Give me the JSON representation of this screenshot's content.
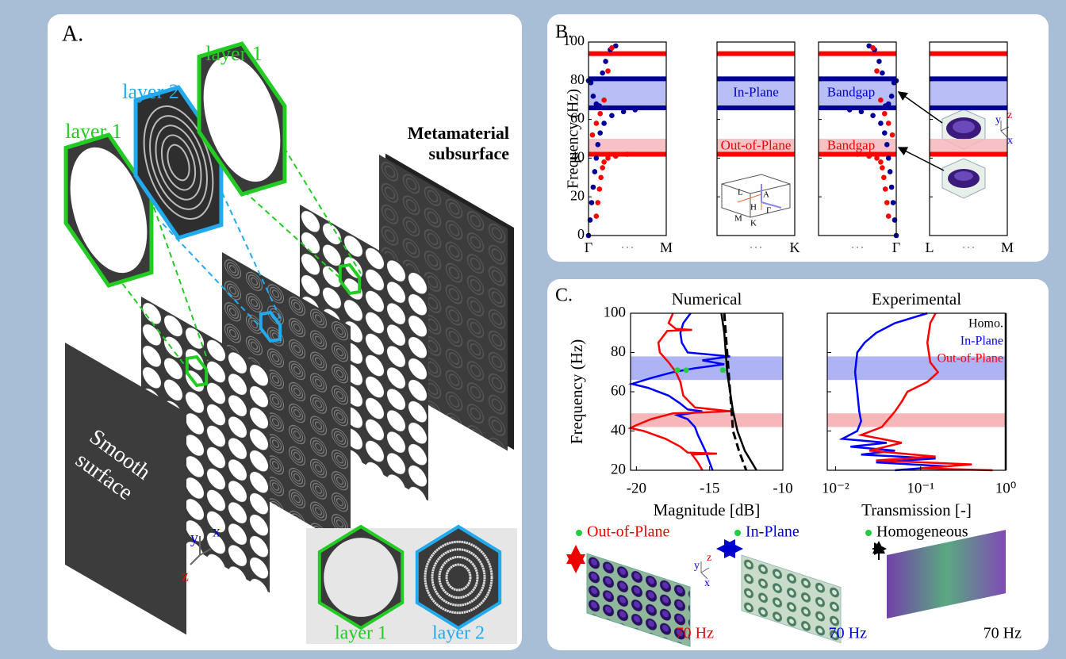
{
  "panel_a": {
    "label": "A.",
    "layer_labels": [
      "layer 1",
      "layer 2",
      "layer 1"
    ],
    "metamaterial_label": [
      "Metamaterial",
      "subsurface"
    ],
    "smooth_label": [
      "Smooth",
      "surface"
    ],
    "axes": [
      "y",
      "x",
      "z"
    ],
    "inset_labels": [
      "layer 1",
      "layer 2"
    ]
  },
  "panel_b": {
    "label": "B.",
    "brillouin_labels": [
      "L",
      "A",
      "H",
      "Γ",
      "M",
      "K"
    ],
    "cell_axes": [
      "y",
      "z",
      "x"
    ]
  },
  "panel_c": {
    "label": "C.",
    "modes": [
      {
        "label": "Out-of-Plane",
        "frequency": "70 Hz"
      },
      {
        "label": "In-Plane",
        "frequency": "70 Hz"
      },
      {
        "label": "Homogeneous",
        "frequency": "70 Hz"
      }
    ],
    "axes": [
      "y",
      "z",
      "x"
    ]
  },
  "chart_data": [
    {
      "type": "band-structure",
      "ylabel": "Frequency (Hz)",
      "ylim": [
        0,
        100
      ],
      "yticks": [
        0,
        20,
        40,
        60,
        80,
        100
      ],
      "panels": [
        [
          "Γ",
          "···",
          "M"
        ],
        [
          "···",
          "K"
        ],
        [
          "···",
          "Γ"
        ],
        [
          "L",
          "···",
          "M"
        ]
      ],
      "bandgaps": [
        {
          "name": "In-Plane",
          "label": "Bandgap",
          "range": [
            66,
            81
          ],
          "color": "#aeb3f5",
          "text_color": "#0000cc"
        },
        {
          "name": "Out-of-Plane",
          "label": "Bandgap",
          "range": [
            42,
            50
          ],
          "color": "#f6b7bb",
          "text_color": "#ee0000"
        }
      ],
      "flat_bands": [
        {
          "value": 94,
          "color": "#ff0000"
        },
        {
          "value": 81,
          "color": "#000099"
        },
        {
          "value": 66,
          "color": "#000099"
        },
        {
          "value": 42,
          "color": "#ff0000"
        }
      ],
      "point_sets": [
        {
          "panel": 0,
          "color": "#000099",
          "x": [
            0,
            0.02,
            0.04,
            0.06,
            0.08,
            0.1,
            0.12,
            0.15,
            0.2,
            0.3,
            0.45,
            0.6
          ],
          "y": [
            0,
            8,
            17,
            25,
            33,
            40,
            47,
            53,
            58,
            62,
            64,
            65
          ]
        },
        {
          "panel": 0,
          "color": "#ff0000",
          "x": [
            0.1,
            0.12,
            0.14,
            0.16,
            0.18,
            0.2,
            0.25,
            0.35,
            0.5
          ],
          "y": [
            10,
            17,
            24,
            30,
            35,
            38,
            40,
            41,
            42
          ]
        },
        {
          "panel": 0,
          "color": "#000099",
          "x": [
            0,
            0.03,
            0.06,
            0.1,
            0.14,
            0.18,
            0.22,
            0.28,
            0.35
          ],
          "y": [
            80,
            79,
            72,
            68,
            67,
            84,
            90,
            96,
            98
          ]
        },
        {
          "panel": 0,
          "color": "#ff0000",
          "x": [
            0.05,
            0.1,
            0.15,
            0.2,
            0.25,
            0.3
          ],
          "y": [
            52,
            58,
            63,
            70,
            85,
            97
          ]
        },
        {
          "panel": 2,
          "color": "#000099",
          "x": [
            1,
            0.98,
            0.96,
            0.94,
            0.92,
            0.9,
            0.88,
            0.85,
            0.8,
            0.7,
            0.55,
            0.4
          ],
          "y": [
            0,
            8,
            17,
            25,
            33,
            40,
            47,
            53,
            58,
            62,
            64,
            65
          ]
        },
        {
          "panel": 2,
          "color": "#ff0000",
          "x": [
            0.9,
            0.88,
            0.86,
            0.84,
            0.82,
            0.8,
            0.75,
            0.65,
            0.5
          ],
          "y": [
            10,
            17,
            24,
            30,
            35,
            38,
            40,
            41,
            42
          ]
        },
        {
          "panel": 2,
          "color": "#000099",
          "x": [
            1,
            0.97,
            0.94,
            0.9,
            0.86,
            0.82,
            0.78,
            0.72,
            0.65
          ],
          "y": [
            80,
            79,
            72,
            68,
            67,
            84,
            90,
            96,
            98
          ]
        },
        {
          "panel": 2,
          "color": "#ff0000",
          "x": [
            0.95,
            0.9,
            0.85,
            0.8,
            0.75,
            0.7
          ],
          "y": [
            52,
            58,
            63,
            70,
            85,
            97
          ]
        }
      ]
    },
    {
      "type": "line",
      "title": "Numerical",
      "xlabel": "Magnitude [dB]",
      "ylabel": "Frequency (Hz)",
      "xlim": [
        -20.4,
        -10
      ],
      "xticks": [
        -20,
        -15,
        -10
      ],
      "ylim": [
        20,
        100
      ],
      "yticks": [
        20,
        40,
        60,
        80,
        100
      ],
      "bands": [
        {
          "range": [
            66,
            78
          ],
          "color": "#aeb3f5"
        },
        {
          "range": [
            42,
            49
          ],
          "color": "#f6b7bb"
        }
      ],
      "series": [
        {
          "color": "#0000ff",
          "y": [
            100,
            95,
            90,
            85,
            80,
            78,
            76,
            74,
            72,
            70,
            67,
            64,
            62,
            58,
            54,
            51,
            50,
            48,
            46,
            42,
            38,
            30,
            20
          ],
          "x": [
            -16.3,
            -16.8,
            -17.0,
            -16.9,
            -16.5,
            -13.6,
            -15.5,
            -14.0,
            -16.0,
            -17.5,
            -19.0,
            -20.3,
            -19.2,
            -17.8,
            -17.0,
            -16.5,
            -15.5,
            -17.2,
            -16.5,
            -16.0,
            -15.8,
            -15.3,
            -14.8
          ]
        },
        {
          "color": "#ff0000",
          "y": [
            100,
            95,
            92,
            91.5,
            91,
            85,
            80,
            75,
            70,
            65,
            58,
            52,
            50,
            49,
            46,
            43,
            41.5,
            40,
            36,
            32,
            29,
            28.5,
            28,
            24,
            20
          ],
          "x": [
            -17.5,
            -17.8,
            -17.3,
            -16.2,
            -17.9,
            -18.5,
            -18.4,
            -17.8,
            -17.3,
            -17.0,
            -16.8,
            -16.0,
            -13.5,
            -17.5,
            -19.0,
            -20.0,
            -20.4,
            -19.5,
            -18.0,
            -17.0,
            -16.5,
            -14.5,
            -16.2,
            -15.8,
            -15.5
          ]
        },
        {
          "color": "#000000",
          "y": [
            100,
            90,
            80,
            70,
            60,
            50,
            40,
            30,
            20
          ],
          "x": [
            -14.2,
            -14.0,
            -13.9,
            -13.8,
            -13.6,
            -13.4,
            -13.1,
            -12.6,
            -11.8
          ]
        },
        {
          "color": "#000000",
          "dash": true,
          "y": [
            100,
            80,
            60,
            40,
            30,
            20
          ],
          "x": [
            -14.0,
            -13.8,
            -13.6,
            -13.4,
            -13.0,
            -12.5
          ]
        }
      ],
      "markers": {
        "color": "#22cc44",
        "x": [
          -17.2,
          -16.6,
          -14.1
        ],
        "y": [
          71,
          71,
          71
        ]
      }
    },
    {
      "type": "line",
      "title": "Experimental",
      "xlabel": "Transmission [-]",
      "log_x": true,
      "xlim": [
        0.008,
        1
      ],
      "xticks": [
        {
          "value": 0.01,
          "label": "10⁻²"
        },
        {
          "value": 0.1,
          "label": "10⁻¹"
        },
        {
          "value": 1,
          "label": "10⁰"
        }
      ],
      "ylim": [
        20,
        100
      ],
      "yticks": [
        20,
        40,
        60,
        80,
        100
      ],
      "ytick_labels": false,
      "legend": "upper right",
      "bands": [
        {
          "range": [
            66,
            78
          ],
          "color": "#aeb3f5"
        },
        {
          "range": [
            42,
            49
          ],
          "color": "#f6b7bb"
        }
      ],
      "series": [
        {
          "name": "Homo.",
          "color": "#000000",
          "y": [
            20,
            100
          ],
          "x": [
            1,
            1
          ]
        },
        {
          "name": "In-Plane",
          "color": "#0000ff",
          "y": [
            100,
            95,
            90,
            85,
            80,
            70,
            60,
            50,
            45,
            40,
            36,
            34,
            32,
            30,
            28,
            26,
            24,
            22,
            20
          ],
          "x": [
            0.12,
            0.05,
            0.03,
            0.022,
            0.018,
            0.017,
            0.018,
            0.019,
            0.02,
            0.018,
            0.012,
            0.04,
            0.015,
            0.05,
            0.02,
            0.15,
            0.03,
            0.2,
            0.05
          ]
        },
        {
          "name": "Out-of-Plane",
          "color": "#ff0000",
          "y": [
            100,
            95,
            85,
            75,
            70,
            65,
            60,
            55,
            50,
            45,
            42,
            38,
            34,
            30,
            27,
            25,
            23,
            21,
            20
          ],
          "x": [
            0.15,
            0.13,
            0.12,
            0.13,
            0.16,
            0.12,
            0.07,
            0.06,
            0.05,
            0.04,
            0.035,
            0.02,
            0.06,
            0.025,
            0.15,
            0.03,
            0.4,
            0.1,
            0.7
          ]
        }
      ]
    }
  ]
}
